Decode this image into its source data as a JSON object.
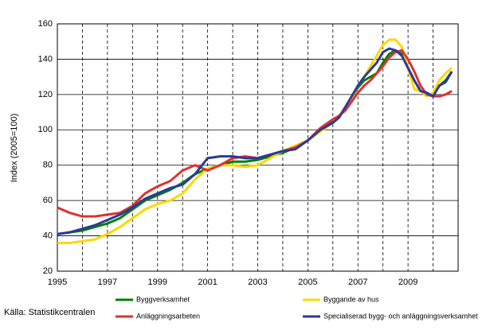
{
  "chart_data": {
    "type": "line",
    "y_label": "Index (2005=100)",
    "source": "Källa: Statistikcentralen",
    "x": [
      1995,
      1995.5,
      1996,
      1996.5,
      1997,
      1997.5,
      1998,
      1998.5,
      1999,
      1999.5,
      2000,
      2000.5,
      2001,
      2001.5,
      2002,
      2002.5,
      2003,
      2003.5,
      2004,
      2004.5,
      2005,
      2005.5,
      2006,
      2006.25,
      2006.5,
      2006.75,
      2007,
      2007.25,
      2007.5,
      2007.75,
      2008,
      2008.25,
      2008.5,
      2008.75,
      2009,
      2009.25,
      2009.5,
      2009.75,
      2010,
      2010.25,
      2010.5,
      2010.75
    ],
    "series": [
      {
        "name": "Byggverksamhet",
        "color": "#008000",
        "values": [
          41,
          42,
          43,
          45,
          47,
          50,
          55,
          60,
          63,
          66,
          70,
          75,
          78,
          80,
          82,
          82,
          83,
          85,
          87,
          90,
          94,
          100,
          105,
          108,
          112,
          118,
          124,
          128,
          130,
          132,
          138,
          143,
          145,
          143,
          135,
          128,
          122,
          120,
          120,
          125,
          128,
          133
        ]
      },
      {
        "name": "Byggande av hus",
        "color": "#ffd700",
        "values": [
          36,
          36,
          37,
          38,
          41,
          45,
          50,
          55,
          58,
          60,
          64,
          72,
          78,
          80,
          80,
          79,
          80,
          84,
          88,
          91,
          94,
          99,
          104,
          108,
          113,
          118,
          125,
          130,
          136,
          142,
          148,
          151,
          151,
          147,
          135,
          123,
          122,
          119,
          121,
          128,
          132,
          135
        ]
      },
      {
        "name": "Anläggningsarbeten",
        "color": "#e03030",
        "values": [
          56,
          53,
          51,
          51,
          52,
          53,
          57,
          64,
          68,
          71,
          77,
          80,
          77,
          80,
          84,
          85,
          84,
          86,
          88,
          90,
          94,
          101,
          106,
          108,
          111,
          116,
          121,
          125,
          128,
          132,
          136,
          141,
          144,
          145,
          140,
          133,
          125,
          120,
          119,
          119,
          120,
          122
        ]
      },
      {
        "name": "Specialiserad bygg- och anläggningsverksamhet",
        "color": "#2a3a9a",
        "values": [
          41,
          42,
          44,
          46,
          49,
          52,
          56,
          61,
          64,
          67,
          69,
          75,
          84,
          85,
          85,
          84,
          84,
          86,
          88,
          89,
          94,
          100,
          104,
          107,
          113,
          119,
          125,
          130,
          134,
          138,
          144,
          146,
          145,
          142,
          135,
          128,
          122,
          121,
          119,
          125,
          127,
          133
        ]
      }
    ],
    "xlim": [
      1995,
      2011
    ],
    "xticks": [
      1995,
      1997,
      1999,
      2001,
      2003,
      2005,
      2007,
      2009
    ],
    "minor_xticks": [
      1996,
      1998,
      2000,
      2002,
      2004,
      2006,
      2008,
      2010
    ],
    "ylim": [
      20,
      160
    ],
    "yticks": [
      20,
      40,
      60,
      80,
      100,
      120,
      140,
      160
    ],
    "grid": true
  }
}
